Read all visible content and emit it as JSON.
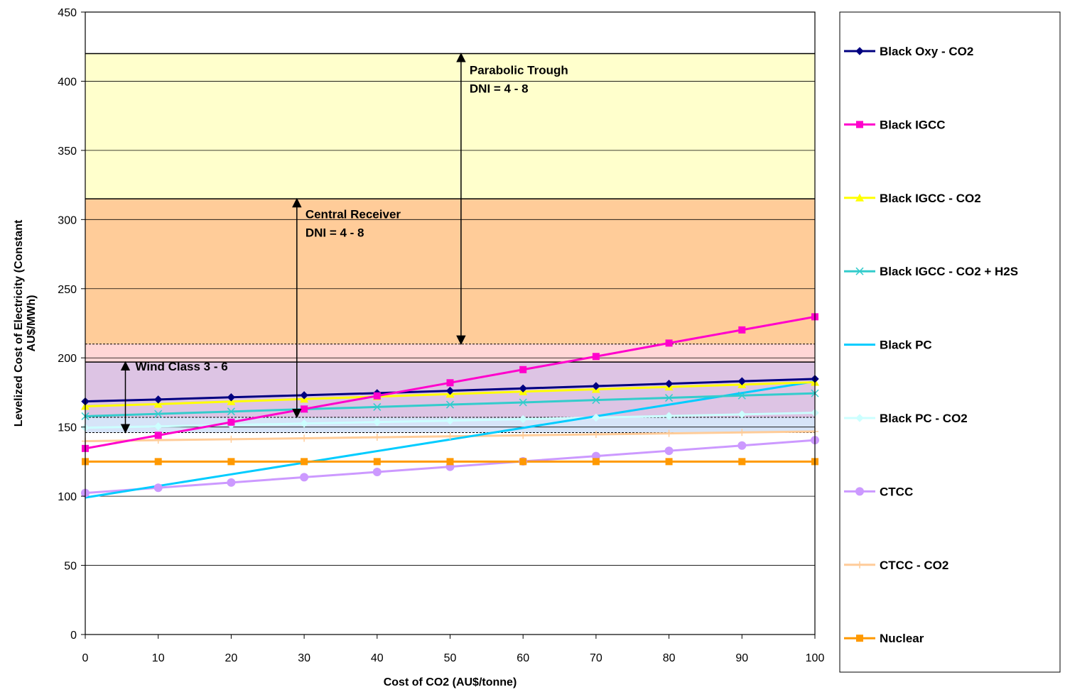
{
  "chart_data": {
    "type": "line",
    "xlabel": "Cost of CO2 (AU$/tonne)",
    "ylabel_lines": [
      "Levelized Cost of Electricity (Constant",
      "AU$/MWh)"
    ],
    "xlim": [
      0,
      100
    ],
    "ylim": [
      0,
      450
    ],
    "x_ticks": [
      0,
      10,
      20,
      30,
      40,
      50,
      60,
      70,
      80,
      90,
      100
    ],
    "y_ticks": [
      0,
      50,
      100,
      150,
      200,
      250,
      300,
      350,
      400,
      450
    ],
    "grid": "horizontal",
    "legend_position": "right",
    "x": [
      0,
      10,
      20,
      30,
      40,
      50,
      60,
      70,
      80,
      90,
      100
    ],
    "bands": [
      {
        "name": "Parabolic Trough",
        "label_lines": [
          "Parabolic Trough",
          "DNI = 4 - 8"
        ],
        "low": 210,
        "high": 420,
        "color": "#ffffcc",
        "arrow_x": 51.5
      },
      {
        "name": "Central Receiver",
        "label_lines": [
          "Central Receiver",
          "DNI = 4 - 8"
        ],
        "low": 157,
        "high": 315,
        "color": "#ffcc99",
        "arrow_x": 29
      },
      {
        "name": "Wind Class",
        "label_lines": [
          "Wind Class 3 - 6"
        ],
        "low": 146,
        "high": 197,
        "color": "#ccccff",
        "arrow_x": 5.5
      }
    ],
    "series": [
      {
        "name": "Black Oxy - CO2",
        "color": "#000080",
        "marker": "diamond",
        "values": [
          168.5,
          169.9,
          171.5,
          173.0,
          174.5,
          176.2,
          177.9,
          179.6,
          181.3,
          183.1,
          184.8
        ]
      },
      {
        "name": "Black IGCC",
        "color": "#ff00cc",
        "marker": "square",
        "values": [
          134.5,
          144.0,
          153.5,
          163.0,
          172.5,
          182.0,
          191.5,
          201.0,
          210.7,
          220.2,
          229.7
        ]
      },
      {
        "name": "Black IGCC - CO2",
        "color": "#ffff00",
        "marker": "triangle",
        "values": [
          165.0,
          166.6,
          168.4,
          170.2,
          172.0,
          173.8,
          175.6,
          177.3,
          179.0,
          180.7,
          182.4
        ]
      },
      {
        "name": "Black IGCC - CO2 + H2S",
        "color": "#33cccc",
        "marker": "x",
        "values": [
          157.8,
          159.5,
          161.2,
          162.9,
          164.5,
          166.2,
          167.8,
          169.5,
          171.1,
          172.8,
          174.4
        ]
      },
      {
        "name": "Black PC",
        "color": "#00ccff",
        "marker": "none",
        "values": [
          99.0,
          107.4,
          115.8,
          124.2,
          132.6,
          141.0,
          149.4,
          157.8,
          166.2,
          174.6,
          183.0
        ]
      },
      {
        "name": "Black PC - CO2",
        "color": "#ccffff",
        "marker": "diamond",
        "values": [
          149.5,
          150.5,
          151.5,
          152.5,
          153.6,
          154.6,
          155.7,
          156.8,
          158.0,
          159.1,
          160.3
        ]
      },
      {
        "name": "CTCC",
        "color": "#cc99ff",
        "marker": "circle",
        "values": [
          102.3,
          106.1,
          109.9,
          113.7,
          117.5,
          121.3,
          125.2,
          129.0,
          132.8,
          136.6,
          140.5
        ]
      },
      {
        "name": "CTCC - CO2",
        "color": "#ffcc99",
        "marker": "plus",
        "values": [
          139.8,
          140.5,
          141.2,
          141.9,
          142.6,
          143.3,
          144.0,
          144.7,
          145.4,
          146.1,
          146.8
        ]
      },
      {
        "name": "Nuclear",
        "color": "#ff9900",
        "marker": "square",
        "values": [
          125.0,
          125.0,
          125.0,
          125.0,
          125.0,
          125.0,
          125.0,
          125.0,
          125.0,
          125.0,
          125.0
        ]
      }
    ]
  }
}
